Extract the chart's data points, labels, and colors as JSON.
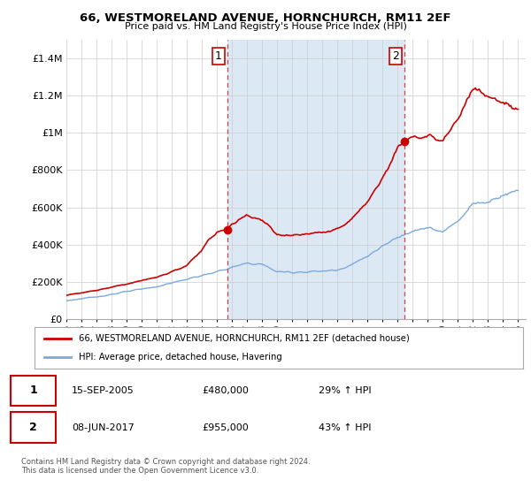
{
  "title": "66, WESTMORELAND AVENUE, HORNCHURCH, RM11 2EF",
  "subtitle": "Price paid vs. HM Land Registry's House Price Index (HPI)",
  "x_start": 1995.0,
  "x_end": 2025.5,
  "ylim": [
    0,
    1500000
  ],
  "yticks": [
    0,
    200000,
    400000,
    600000,
    800000,
    1000000,
    1200000,
    1400000
  ],
  "ytick_labels": [
    "£0",
    "£200K",
    "£400K",
    "£600K",
    "£800K",
    "£1M",
    "£1.2M",
    "£1.4M"
  ],
  "xtick_years": [
    1995,
    1996,
    1997,
    1998,
    1999,
    2000,
    2001,
    2002,
    2003,
    2004,
    2005,
    2006,
    2007,
    2008,
    2009,
    2010,
    2011,
    2012,
    2013,
    2014,
    2015,
    2016,
    2017,
    2018,
    2019,
    2020,
    2021,
    2022,
    2023,
    2024,
    2025
  ],
  "sale1_x": 2005.71,
  "sale1_y": 480000,
  "sale1_label": "1",
  "sale2_x": 2017.44,
  "sale2_y": 955000,
  "sale2_label": "2",
  "red_line_color": "#cc0000",
  "blue_line_color": "#7aaadd",
  "shade_color": "#dde8f5",
  "dashed_line_color": "#cc4444",
  "legend_red_label": "66, WESTMORELAND AVENUE, HORNCHURCH, RM11 2EF (detached house)",
  "legend_blue_label": "HPI: Average price, detached house, Havering",
  "footer": "Contains HM Land Registry data © Crown copyright and database right 2024.\nThis data is licensed under the Open Government Licence v3.0.",
  "background_color": "#ffffff",
  "grid_color": "#cccccc",
  "hpi_anchors_x": [
    1995,
    1997,
    1999,
    2001,
    2003,
    2005,
    2007,
    2008,
    2009,
    2010,
    2011,
    2012,
    2013,
    2014,
    2015,
    2016,
    2017,
    2018,
    2019,
    2020,
    2021,
    2022,
    2023,
    2024,
    2025
  ],
  "hpi_anchors_y": [
    100000,
    120000,
    148000,
    175000,
    215000,
    255000,
    300000,
    295000,
    255000,
    252000,
    255000,
    258000,
    265000,
    295000,
    340000,
    390000,
    440000,
    480000,
    490000,
    465000,
    530000,
    620000,
    630000,
    670000,
    690000
  ],
  "red_anchors_x": [
    1995,
    1997,
    1999,
    2001,
    2003,
    2005,
    2005.71,
    2006,
    2007,
    2008,
    2009,
    2010,
    2011,
    2012,
    2013,
    2014,
    2015,
    2016,
    2017,
    2017.44,
    2018,
    2019,
    2020,
    2021,
    2022,
    2023,
    2024,
    2025
  ],
  "red_anchors_y": [
    130000,
    155000,
    190000,
    225000,
    285000,
    470000,
    480000,
    510000,
    560000,
    530000,
    455000,
    450000,
    455000,
    465000,
    480000,
    540000,
    630000,
    760000,
    920000,
    955000,
    980000,
    980000,
    950000,
    1080000,
    1230000,
    1200000,
    1150000,
    1130000
  ]
}
